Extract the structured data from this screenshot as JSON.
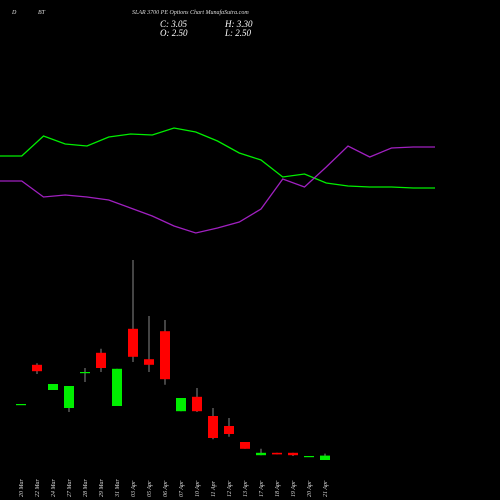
{
  "chart_data": [
    {
      "type": "candlestick",
      "title_parts": [
        "D",
        "BT",
        "SLAR 3700 PE Options Chart MunafaSutra.com"
      ],
      "annotations": [
        "C: 3.05",
        "H: 3.30",
        "O: 2.50",
        "L: 2.50"
      ],
      "categories": [
        "20 Mar",
        "22 Mar",
        "24 Mar",
        "27 Mar",
        "28 Mar",
        "29 Mar",
        "31 Mar",
        "03 Apr",
        "05 Apr",
        "06 Apr",
        "07 Apr",
        "10 Apr",
        "11 Apr",
        "12 Apr",
        "13 Apr",
        "17 Apr",
        "18 Apr",
        "19 Apr",
        "20 Apr",
        "21 Apr"
      ],
      "open": [
        9.5,
        14.4,
        11.25,
        9,
        13.5,
        15.9,
        9.25,
        18.9,
        15.1,
        18.6,
        8.6,
        10.4,
        8,
        6.75,
        4.75,
        3.1,
        3.4,
        3.4,
        2.9,
        2.5
      ],
      "close": [
        9.5,
        13.6,
        12,
        11.75,
        13.5,
        14,
        13.9,
        15.4,
        14.4,
        12.6,
        10.25,
        8.6,
        5.25,
        5.75,
        3.9,
        3.4,
        3.2,
        3.1,
        3.0,
        3.05
      ],
      "high": [
        9.5,
        14.6,
        12,
        11.75,
        14,
        16.4,
        13.9,
        27.5,
        20.5,
        20,
        10.25,
        11.5,
        9,
        7.75,
        4.75,
        3.9,
        3.4,
        3.4,
        3.0,
        3.3
      ],
      "low": [
        9.5,
        13.25,
        11.25,
        8.5,
        12.25,
        13.5,
        9.25,
        14.75,
        13.5,
        11.9,
        8.6,
        8.5,
        5.1,
        5.4,
        3.9,
        3.1,
        3.2,
        3.0,
        2.9,
        2.5
      ],
      "up_color": "#00ee00",
      "down_color": "#ff0000",
      "ylim": [
        0,
        60
      ]
    },
    {
      "type": "line",
      "categories": [
        null,
        null,
        null,
        null,
        null,
        null,
        null,
        null,
        null,
        null,
        null,
        null,
        null,
        null,
        null,
        null,
        null,
        null,
        null,
        null,
        null
      ],
      "series": [
        {
          "color": "#00ee00",
          "values": [
            144,
            144,
            164,
            156,
            154,
            163,
            166,
            165,
            172,
            168,
            159,
            147,
            140,
            123,
            126,
            117,
            114,
            113,
            113,
            112,
            112
          ]
        },
        {
          "color": "#a020c0",
          "values": [
            119,
            119,
            103,
            105,
            103,
            100,
            92,
            84,
            74,
            67,
            72,
            78,
            91,
            121,
            113,
            133,
            154,
            143,
            152,
            153,
            153
          ]
        }
      ],
      "ylim": [
        50,
        200
      ]
    }
  ]
}
